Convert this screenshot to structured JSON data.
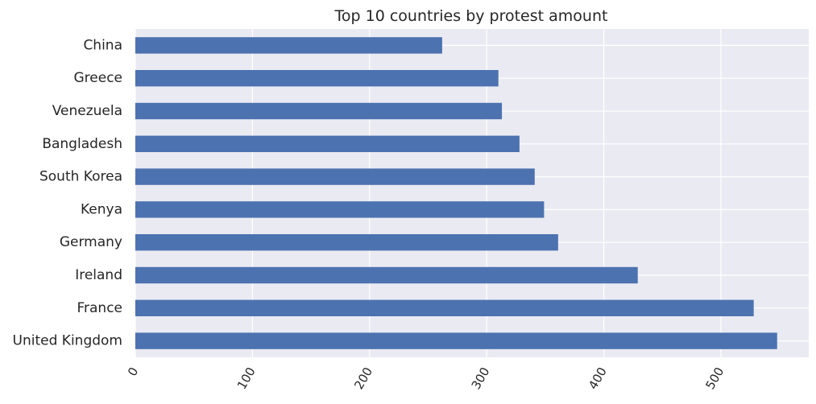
{
  "chart_data": {
    "type": "bar",
    "orientation": "horizontal",
    "title": "Top 10 countries by protest amount",
    "xlabel": "",
    "ylabel": "",
    "categories": [
      "United Kingdom",
      "France",
      "Ireland",
      "Germany",
      "Kenya",
      "South Korea",
      "Bangladesh",
      "Venezuela",
      "Greece",
      "China"
    ],
    "values": [
      548,
      528,
      429,
      361,
      349,
      341,
      328,
      313,
      310,
      262
    ],
    "xlim": [
      0,
      575
    ],
    "xticks": [
      0,
      100,
      200,
      300,
      400,
      500
    ],
    "tick_label_rotation": 60,
    "grid": true,
    "colors": {
      "bar": "#4c72b0",
      "plot_background": "#eaeaf2",
      "grid": "#ffffff",
      "text": "#262626"
    }
  }
}
